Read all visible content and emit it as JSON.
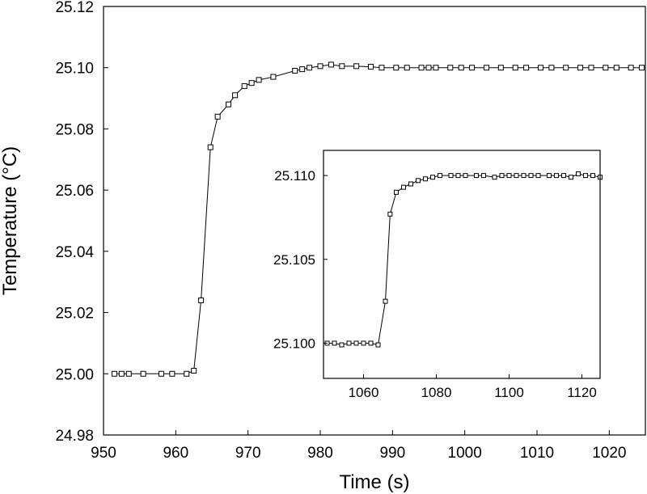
{
  "chart_data": [
    {
      "type": "line",
      "role": "main",
      "xlabel": "Time (s)",
      "ylabel": "Temperature (°C)",
      "xlim": [
        950,
        1025
      ],
      "ylim": [
        24.98,
        25.12
      ],
      "xticks": [
        950,
        960,
        970,
        980,
        990,
        1000,
        1010,
        1020
      ],
      "yticks": [
        "24.98",
        "25.00",
        "25.02",
        "25.04",
        "25.06",
        "25.08",
        "25.10",
        "25.12"
      ],
      "grid": false,
      "marker": "open-square",
      "series": [
        {
          "x": [
            951.5,
            952.5,
            953.5,
            955.5,
            958,
            959.5,
            961.5,
            962.5,
            963.5,
            964.8,
            965.8,
            967.3,
            968.2,
            969.5,
            970.5,
            971.5,
            973.5,
            976.5,
            977.5,
            978.5,
            980,
            981.5,
            983,
            985,
            987,
            988.5,
            990.5,
            992,
            994,
            995,
            996,
            998,
            999.5,
            1001,
            1003,
            1005,
            1007,
            1008.5,
            1010.5,
            1012,
            1014,
            1016,
            1017.5,
            1019.5,
            1021,
            1023,
            1024.5
          ],
          "y": [
            25.0,
            25.0,
            25.0,
            25.0,
            25.0,
            25.0,
            25.0,
            25.001,
            25.024,
            25.074,
            25.084,
            25.088,
            25.091,
            25.094,
            25.095,
            25.096,
            25.097,
            25.099,
            25.0995,
            25.1,
            25.1005,
            25.101,
            25.1005,
            25.1005,
            25.1003,
            25.1,
            25.1,
            25.1,
            25.1,
            25.1,
            25.1,
            25.1,
            25.1,
            25.1,
            25.1,
            25.1,
            25.1,
            25.1,
            25.1,
            25.1,
            25.1,
            25.1,
            25.1,
            25.1,
            25.1,
            25.1,
            25.1
          ]
        }
      ]
    },
    {
      "type": "line",
      "role": "inset",
      "xlabel": "",
      "ylabel": "",
      "xlim": [
        1049,
        1125
      ],
      "ylim": [
        25.0979,
        25.1115
      ],
      "xticks": [
        1060,
        1080,
        1100,
        1120
      ],
      "yticks": [
        "25.100",
        "25.105",
        "25.110"
      ],
      "grid": false,
      "marker": "open-square",
      "series": [
        {
          "x": [
            1050,
            1052,
            1054,
            1056,
            1058,
            1060,
            1062,
            1064,
            1066,
            1067.3,
            1069,
            1071,
            1073,
            1075,
            1077,
            1079,
            1081,
            1084,
            1086,
            1088,
            1091,
            1093,
            1096,
            1098,
            1100,
            1102,
            1104,
            1106,
            1108,
            1111,
            1113,
            1115,
            1117,
            1119,
            1121,
            1123,
            1125
          ],
          "y": [
            25.1,
            25.1,
            25.0999,
            25.1,
            25.1,
            25.1,
            25.1,
            25.0999,
            25.1025,
            25.1077,
            25.109,
            25.1093,
            25.1095,
            25.1097,
            25.1098,
            25.1099,
            25.11,
            25.11,
            25.11,
            25.11,
            25.11,
            25.11,
            25.1099,
            25.11,
            25.11,
            25.11,
            25.11,
            25.11,
            25.11,
            25.11,
            25.11,
            25.11,
            25.1099,
            25.1101,
            25.11,
            25.11,
            25.1099
          ]
        }
      ]
    }
  ]
}
